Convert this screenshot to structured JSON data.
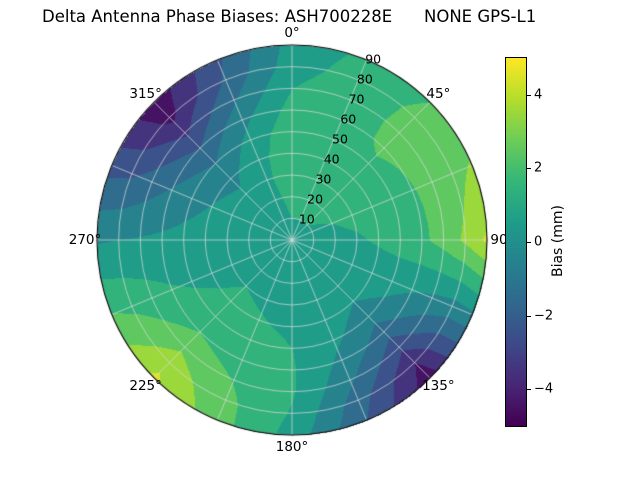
{
  "header": {
    "title_left": "Delta Antenna Phase Biases: ASH700228E",
    "title_right": "NONE GPS-L1"
  },
  "chart_data": {
    "type": "heatmap",
    "projection": "polar",
    "title": "Delta Antenna Phase Biases: ASH700228E      NONE GPS-L1",
    "azimuth_zero": "top",
    "azimuth_direction": "clockwise",
    "radial_max": 90,
    "grid": {
      "ring_step": 10,
      "spoke_step_deg": 22.5,
      "grid_on": true
    },
    "angle_tick_labels": [
      {
        "azimuth_deg": 0,
        "label": "0°"
      },
      {
        "azimuth_deg": 45,
        "label": "45°"
      },
      {
        "azimuth_deg": 90,
        "label": "90"
      },
      {
        "azimuth_deg": 135,
        "label": "135°"
      },
      {
        "azimuth_deg": 180,
        "label": "180°"
      },
      {
        "azimuth_deg": 225,
        "label": "225°"
      },
      {
        "azimuth_deg": 270,
        "label": "270°"
      },
      {
        "azimuth_deg": 315,
        "label": "315°"
      }
    ],
    "radial_tick_labels": {
      "along_azimuth_deg": 22.5,
      "values": [
        10,
        20,
        30,
        40,
        50,
        60,
        70,
        80,
        90
      ]
    },
    "colorbar": {
      "label": "Bias (mm)",
      "tick_values": [
        -4,
        -2,
        0,
        2,
        4
      ],
      "tick_labels": [
        "−4",
        "−2",
        "0",
        "2",
        "4"
      ],
      "vmin": -5,
      "vmax": 5,
      "colormap": "viridis",
      "position": "right"
    },
    "contour_step_mm": 1,
    "field": {
      "azimuth_deg": [
        0,
        45,
        90,
        135,
        180,
        225,
        270,
        315
      ],
      "zenith_deg": [
        0,
        10,
        20,
        30,
        40,
        50,
        60,
        70,
        80,
        90
      ],
      "bias_mm": [
        [
          0.8,
          0.8,
          0.8,
          0.8,
          0.8,
          0.8,
          0.8,
          0.8
        ],
        [
          1.0,
          1.0,
          0.8,
          0.6,
          0.8,
          0.8,
          0.7,
          0.7
        ],
        [
          1.2,
          1.2,
          0.8,
          0.5,
          0.8,
          0.9,
          0.6,
          0.5
        ],
        [
          1.5,
          1.5,
          0.9,
          0.3,
          0.8,
          1.0,
          0.5,
          0.2
        ],
        [
          1.7,
          1.7,
          1.1,
          0.0,
          0.9,
          1.2,
          0.4,
          -0.3
        ],
        [
          1.7,
          1.9,
          1.4,
          -0.6,
          1.0,
          1.5,
          0.3,
          -1.0
        ],
        [
          1.4,
          2.1,
          1.8,
          -1.6,
          1.1,
          2.0,
          0.2,
          -2.0
        ],
        [
          1.0,
          2.2,
          2.4,
          -2.8,
          1.1,
          2.8,
          0.1,
          -3.2
        ],
        [
          0.6,
          2.2,
          3.2,
          -4.0,
          0.9,
          3.6,
          0.0,
          -4.3
        ],
        [
          0.4,
          2.0,
          4.2,
          -4.6,
          0.6,
          4.2,
          -0.1,
          -4.7
        ]
      ]
    }
  }
}
